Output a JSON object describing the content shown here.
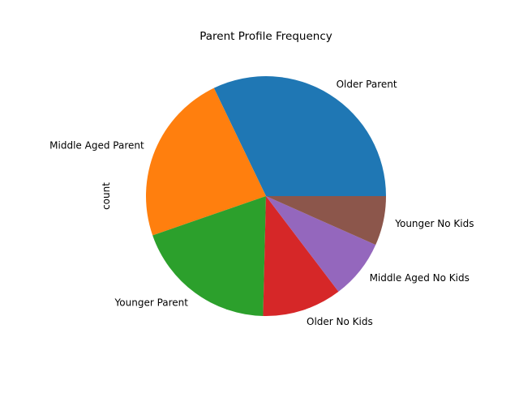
{
  "chart_data": {
    "type": "pie",
    "title": "Parent Profile Frequency",
    "ylabel": "count",
    "labels": [
      "Older Parent",
      "Middle Aged Parent",
      "Younger Parent",
      "Older No Kids",
      "Middle Aged No Kids",
      "Younger No Kids"
    ],
    "values": [
      33.3,
      24.0,
      20.0,
      11.1,
      8.3,
      6.9
    ],
    "colors": [
      "#1f77b4",
      "#ff7f0e",
      "#2ca02c",
      "#d62728",
      "#9467bd",
      "#8c564b"
    ],
    "start_angle_deg": 0,
    "direction": "counterclockwise",
    "legend": "none"
  }
}
